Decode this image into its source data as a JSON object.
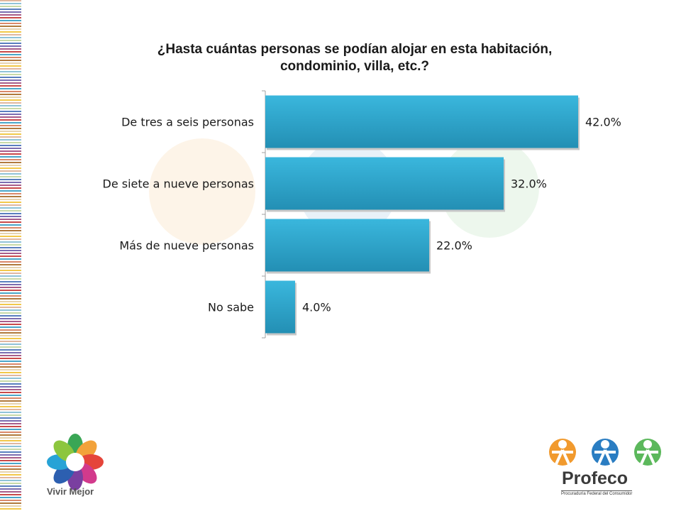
{
  "chart_data": {
    "type": "bar",
    "orientation": "horizontal",
    "title": "¿Hasta cuántas personas se podían alojar en esta habitación, condominio, villa, etc.?",
    "title_lines": [
      "¿Hasta cuántas personas se podían alojar en esta habitación,",
      "condominio, villa, etc.?"
    ],
    "categories": [
      "De tres a seis personas",
      "De siete a nueve personas",
      "Más de nueve personas",
      "No sabe"
    ],
    "values": [
      42.0,
      32.0,
      22.0,
      4.0
    ],
    "value_labels": [
      "42.0%",
      "32.0%",
      "22.0%",
      "4.0%"
    ],
    "xlim": [
      0,
      42.0
    ],
    "grid": false,
    "legend": "none",
    "bar_color": "#2aa6cc"
  },
  "logos": {
    "left_text": "Vivir Mejor",
    "right_name": "Profeco",
    "right_subtitle": "Procuraduría Federal del Consumidor"
  }
}
